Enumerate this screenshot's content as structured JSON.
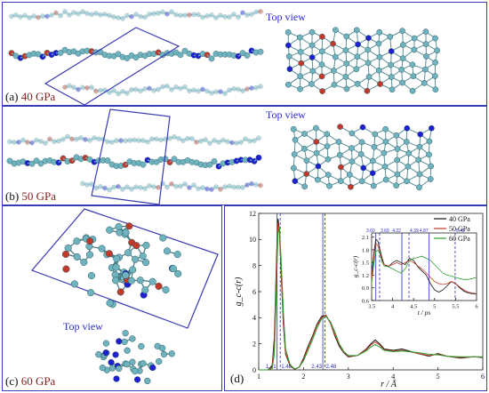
{
  "panels": {
    "a": {
      "label_prefix": "(a) ",
      "label_pressure": "40 GPa",
      "top_view": "Top view"
    },
    "b": {
      "label_prefix": "(b) ",
      "label_pressure": "50 GPa",
      "top_view": "Top view"
    },
    "c": {
      "label_prefix": "(c) ",
      "label_pressure": "60 GPa",
      "top_view": "Top view"
    },
    "d": {
      "label": "(d)"
    }
  },
  "colors": {
    "frame": "#3a3ab5",
    "carbon": "#6fb3bf",
    "nitrogen": "#1f1fd0",
    "oxygen": "#c0392b",
    "pressure_label": "#8b1d1d",
    "s40": "#111111",
    "s50": "#c0392b",
    "s60": "#2e9e2e"
  },
  "chart_data": [
    {
      "type": "line",
      "ylabel": "g_c-c(r)",
      "xlabel": "r / Å",
      "xlim": [
        1,
        6
      ],
      "ylim": [
        0,
        12
      ],
      "xticks": [
        1,
        2,
        3,
        4,
        5,
        6
      ],
      "yticks": [
        0,
        2,
        4,
        6,
        8,
        10,
        12
      ],
      "vlines": [
        {
          "x": 1.41,
          "label": "1.41"
        },
        {
          "x": 1.48,
          "label": "1.48"
        },
        {
          "x": 2.43,
          "label": "2.43"
        },
        {
          "x": 2.48,
          "label": "2.48"
        }
      ],
      "legend": "top-right",
      "series": [
        {
          "name": "40 GPa",
          "x": [
            1.0,
            1.2,
            1.3,
            1.35,
            1.4,
            1.43,
            1.46,
            1.5,
            1.55,
            1.6,
            1.7,
            1.8,
            1.9,
            2.0,
            2.1,
            2.2,
            2.3,
            2.4,
            2.5,
            2.6,
            2.7,
            2.8,
            2.9,
            3.0,
            3.2,
            3.4,
            3.5,
            3.6,
            3.7,
            3.8,
            4.0,
            4.2,
            4.5,
            4.8,
            5.0,
            5.2,
            5.5,
            5.8,
            6.0
          ],
          "y": [
            0,
            0,
            0.3,
            2.5,
            9.0,
            11.6,
            10.8,
            7.5,
            3.5,
            1.2,
            0.3,
            0.05,
            0.2,
            0.9,
            1.8,
            2.6,
            3.5,
            4.1,
            4.2,
            3.6,
            2.6,
            1.8,
            1.3,
            1.0,
            1.1,
            1.6,
            2.0,
            2.3,
            2.0,
            1.6,
            1.5,
            1.6,
            1.3,
            1.05,
            1.25,
            1.05,
            0.9,
            1.0,
            0.95
          ]
        },
        {
          "name": "50 GPa",
          "x": [
            1.0,
            1.2,
            1.3,
            1.35,
            1.4,
            1.43,
            1.46,
            1.5,
            1.55,
            1.6,
            1.7,
            1.8,
            1.9,
            2.0,
            2.1,
            2.2,
            2.3,
            2.4,
            2.5,
            2.6,
            2.7,
            2.8,
            2.9,
            3.0,
            3.2,
            3.4,
            3.5,
            3.6,
            3.7,
            3.8,
            4.0,
            4.2,
            4.5,
            4.8,
            5.0,
            5.2,
            5.5,
            5.8,
            6.0
          ],
          "y": [
            0,
            0,
            0.2,
            2.0,
            8.5,
            11.3,
            10.6,
            7.6,
            3.7,
            1.3,
            0.35,
            0.06,
            0.2,
            0.8,
            1.7,
            2.5,
            3.4,
            4.0,
            4.2,
            3.6,
            2.7,
            1.9,
            1.35,
            1.05,
            1.1,
            1.55,
            1.9,
            2.15,
            1.9,
            1.55,
            1.45,
            1.5,
            1.3,
            1.1,
            1.2,
            1.05,
            0.95,
            1.0,
            0.98
          ]
        },
        {
          "name": "60 GPa",
          "x": [
            1.0,
            1.2,
            1.3,
            1.35,
            1.4,
            1.43,
            1.46,
            1.5,
            1.55,
            1.6,
            1.7,
            1.8,
            1.9,
            2.0,
            2.1,
            2.2,
            2.3,
            2.4,
            2.5,
            2.6,
            2.7,
            2.8,
            2.9,
            3.0,
            3.2,
            3.4,
            3.5,
            3.6,
            3.7,
            3.8,
            4.0,
            4.2,
            4.5,
            4.8,
            5.0,
            5.2,
            5.5,
            5.8,
            6.0
          ],
          "y": [
            0,
            0,
            0.1,
            1.2,
            7.0,
            10.5,
            11.0,
            8.5,
            4.5,
            1.6,
            0.4,
            0.08,
            0.2,
            0.7,
            1.5,
            2.3,
            3.2,
            3.9,
            4.1,
            3.7,
            2.9,
            2.0,
            1.4,
            1.1,
            1.1,
            1.45,
            1.75,
            1.95,
            1.75,
            1.5,
            1.4,
            1.45,
            1.35,
            1.2,
            1.15,
            1.05,
            1.0,
            1.0,
            1.0
          ]
        }
      ]
    },
    {
      "type": "line",
      "ylabel": "g_c-c(r)",
      "xlabel": "t / ps",
      "xlim": [
        3.5,
        6.0
      ],
      "ylim": [
        0.6,
        2.2
      ],
      "xticks": [
        3.5,
        4.0,
        4.5,
        5.0,
        5.5,
        6.0
      ],
      "yticks": [
        0.6,
        0.9,
        1.2,
        1.5,
        1.8,
        2.1
      ],
      "vlines": [
        {
          "x": 3.6,
          "label": "3.60"
        },
        {
          "x": 3.69,
          "label": "3.69"
        },
        {
          "x": 4.22,
          "label": "4.22"
        },
        {
          "x": 4.39,
          "label": "4.39"
        },
        {
          "x": 4.87,
          "label": "4.87"
        },
        {
          "x": 5.49,
          "label": "5.49"
        }
      ],
      "series": [
        {
          "name": "40 GPa",
          "x": [
            3.5,
            3.55,
            3.6,
            3.65,
            3.7,
            3.75,
            3.8,
            3.9,
            4.0,
            4.1,
            4.2,
            4.3,
            4.4,
            4.5,
            4.6,
            4.7,
            4.8,
            4.9,
            5.0,
            5.1,
            5.2,
            5.3,
            5.4,
            5.5,
            5.6,
            5.7,
            5.8,
            5.9,
            6.0
          ],
          "y": [
            1.2,
            1.7,
            2.05,
            2.0,
            1.8,
            1.6,
            1.45,
            1.4,
            1.5,
            1.55,
            1.5,
            1.45,
            1.6,
            1.55,
            1.4,
            1.3,
            1.2,
            1.0,
            0.85,
            0.8,
            0.85,
            0.95,
            1.05,
            1.0,
            0.9,
            0.82,
            0.78,
            0.76,
            0.75
          ]
        },
        {
          "name": "50 GPa",
          "x": [
            3.5,
            3.55,
            3.6,
            3.65,
            3.7,
            3.75,
            3.8,
            3.9,
            4.0,
            4.1,
            4.2,
            4.3,
            4.4,
            4.5,
            4.6,
            4.7,
            4.8,
            4.9,
            5.0,
            5.1,
            5.2,
            5.3,
            5.4,
            5.5,
            5.6,
            5.7,
            5.8,
            5.9,
            6.0
          ],
          "y": [
            1.1,
            1.6,
            1.95,
            1.9,
            1.75,
            1.55,
            1.45,
            1.42,
            1.45,
            1.5,
            1.45,
            1.5,
            1.55,
            1.5,
            1.42,
            1.35,
            1.25,
            1.15,
            1.05,
            1.0,
            0.98,
            1.0,
            1.05,
            1.0,
            0.92,
            0.85,
            0.8,
            0.78,
            0.76
          ]
        },
        {
          "name": "60 GPa",
          "x": [
            3.5,
            3.55,
            3.6,
            3.65,
            3.7,
            3.75,
            3.8,
            3.9,
            4.0,
            4.1,
            4.2,
            4.3,
            4.4,
            4.5,
            4.6,
            4.7,
            4.8,
            4.9,
            5.0,
            5.1,
            5.2,
            5.3,
            5.4,
            5.5,
            5.6,
            5.7,
            5.8,
            5.9,
            6.0
          ],
          "y": [
            1.0,
            1.45,
            1.75,
            1.8,
            1.7,
            1.5,
            1.42,
            1.4,
            1.35,
            1.3,
            1.25,
            1.35,
            1.55,
            1.6,
            1.62,
            1.65,
            1.6,
            1.55,
            1.45,
            1.35,
            1.25,
            1.2,
            1.18,
            1.15,
            1.12,
            1.1,
            1.1,
            1.12,
            1.15
          ]
        }
      ]
    }
  ]
}
